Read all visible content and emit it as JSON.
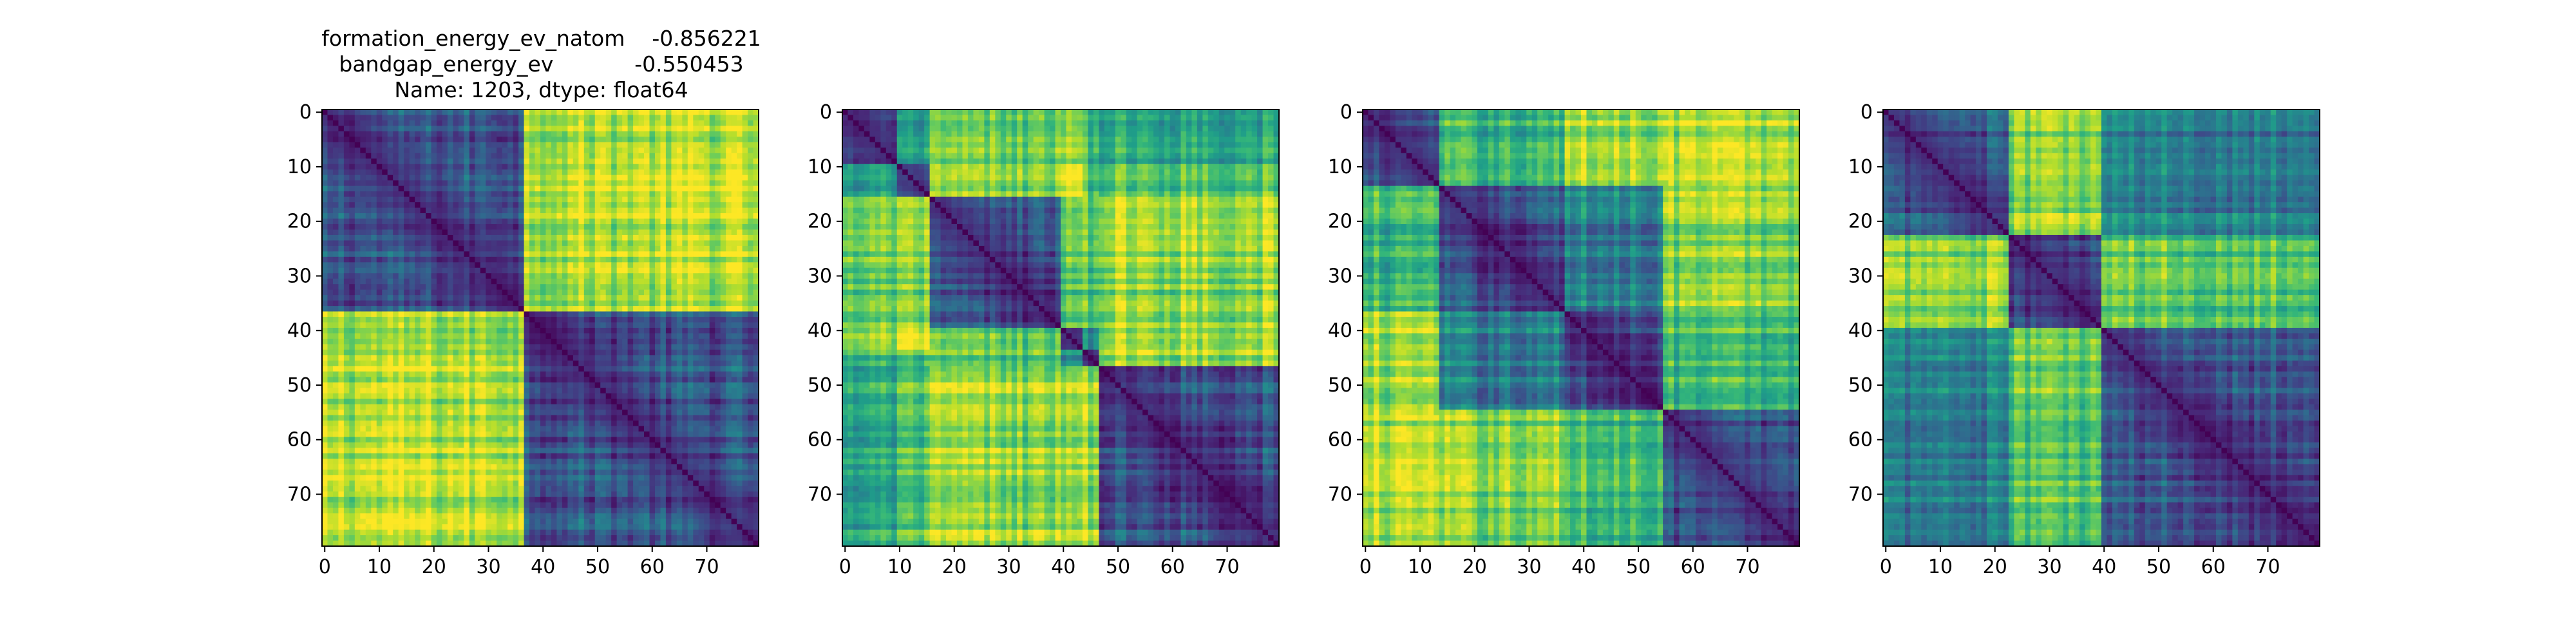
{
  "figure": {
    "title_lines": [
      "formation_energy_ev_natom    -0.856221",
      "bandgap_energy_ev            -0.550453",
      "Name: 1203, dtype: float64"
    ]
  },
  "chart_data": [
    {
      "type": "heatmap",
      "colormap": "viridis",
      "matrix_size": 80,
      "xticks": [
        0,
        10,
        20,
        30,
        40,
        50,
        60,
        70
      ],
      "yticks": [
        0,
        10,
        20,
        30,
        40,
        50,
        60,
        70
      ],
      "xlim": [
        -0.5,
        79.5
      ],
      "ylim": [
        79.5,
        -0.5
      ],
      "block_boundaries": [
        37
      ],
      "diagonal": "low"
    },
    {
      "type": "heatmap",
      "colormap": "viridis",
      "matrix_size": 80,
      "xticks": [
        0,
        10,
        20,
        30,
        40,
        50,
        60,
        70
      ],
      "yticks": [
        0,
        10,
        20,
        30,
        40,
        50,
        60,
        70
      ],
      "xlim": [
        -0.5,
        79.5
      ],
      "ylim": [
        79.5,
        -0.5
      ],
      "block_boundaries": [
        10,
        16,
        40,
        44,
        47
      ],
      "diagonal": "low"
    },
    {
      "type": "heatmap",
      "colormap": "viridis",
      "matrix_size": 80,
      "xticks": [
        0,
        10,
        20,
        30,
        40,
        50,
        60,
        70
      ],
      "yticks": [
        0,
        10,
        20,
        30,
        40,
        50,
        60,
        70
      ],
      "xlim": [
        -0.5,
        79.5
      ],
      "ylim": [
        79.5,
        -0.5
      ],
      "block_boundaries": [
        14,
        37,
        55
      ],
      "diagonal": "low"
    },
    {
      "type": "heatmap",
      "colormap": "viridis",
      "matrix_size": 80,
      "xticks": [
        0,
        10,
        20,
        30,
        40,
        50,
        60,
        70
      ],
      "yticks": [
        0,
        10,
        20,
        30,
        40,
        50,
        60,
        70
      ],
      "xlim": [
        -0.5,
        79.5
      ],
      "ylim": [
        79.5,
        -0.5
      ],
      "block_boundaries": [
        23,
        40
      ],
      "diagonal": "low"
    }
  ]
}
